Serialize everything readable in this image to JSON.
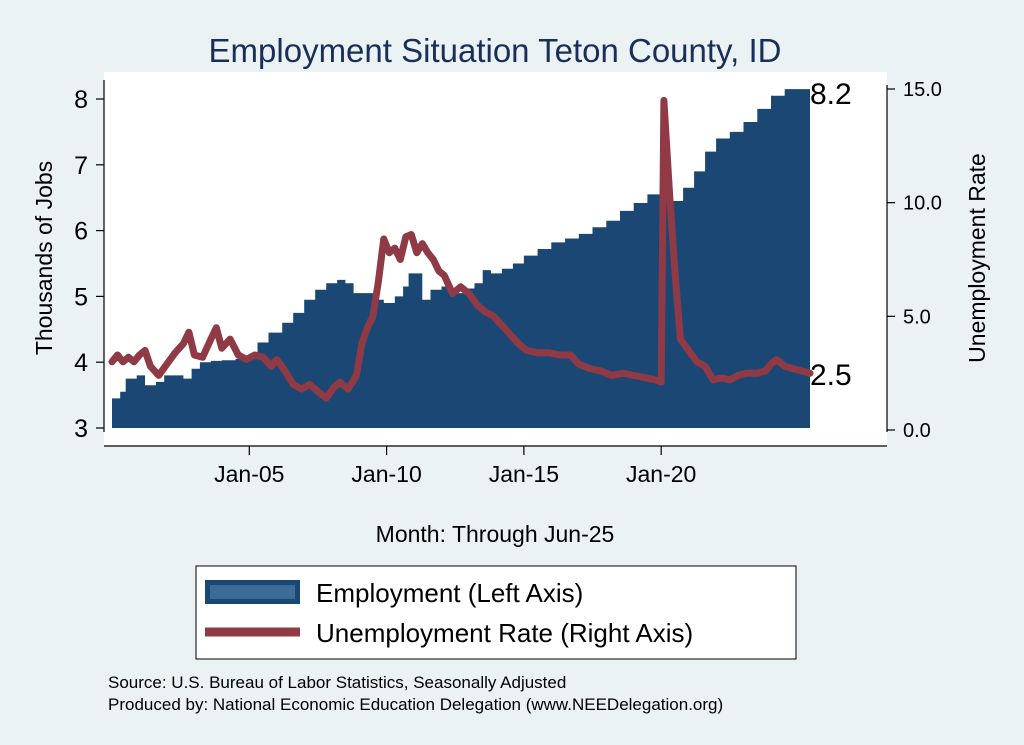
{
  "chart_data": {
    "type": "area",
    "title": "Employment Situation Teton  County, ID",
    "xlabel": "Month: Through Jun-25",
    "ylabel_left": "Thousands of Jobs",
    "ylabel_right": "Unemployment Rate",
    "x_start": "Jan-00",
    "x_end": "Jun-25",
    "x_ticks": [
      {
        "label": "Jan-05",
        "year": 2005
      },
      {
        "label": "Jan-10",
        "year": 2010
      },
      {
        "label": "Jan-15",
        "year": 2015
      },
      {
        "label": "Jan-20",
        "year": 2020
      }
    ],
    "y_left": {
      "min": 3,
      "max": 8.4,
      "ticks": [
        "3",
        "4",
        "5",
        "6",
        "7",
        "8"
      ]
    },
    "y_right": {
      "min": 0,
      "max": 15.8,
      "ticks": [
        "0.0",
        "5.0",
        "10.0",
        "15.0"
      ]
    },
    "grid": false,
    "legend_position": "bottom",
    "colors": {
      "employment": "#1a4774",
      "unemployment": "#8f3a44",
      "background": "#eaf2f3",
      "plot": "#ffffff"
    },
    "series": [
      {
        "name": "Employment (Left Axis)",
        "axis": "left",
        "points": [
          [
            2000.0,
            3.45
          ],
          [
            2000.3,
            3.55
          ],
          [
            2000.5,
            3.75
          ],
          [
            2000.9,
            3.8
          ],
          [
            2001.2,
            3.65
          ],
          [
            2001.6,
            3.7
          ],
          [
            2001.9,
            3.8
          ],
          [
            2002.3,
            3.8
          ],
          [
            2002.6,
            3.75
          ],
          [
            2002.9,
            3.9
          ],
          [
            2003.2,
            4.0
          ],
          [
            2003.6,
            4.02
          ],
          [
            2004.0,
            4.03
          ],
          [
            2004.5,
            4.05
          ],
          [
            2005.0,
            4.1
          ],
          [
            2005.3,
            4.3
          ],
          [
            2005.7,
            4.45
          ],
          [
            2006.2,
            4.6
          ],
          [
            2006.6,
            4.75
          ],
          [
            2007.0,
            4.95
          ],
          [
            2007.4,
            5.1
          ],
          [
            2007.8,
            5.2
          ],
          [
            2008.2,
            5.25
          ],
          [
            2008.5,
            5.2
          ],
          [
            2008.8,
            5.05
          ],
          [
            2009.2,
            5.05
          ],
          [
            2009.5,
            4.95
          ],
          [
            2009.9,
            4.9
          ],
          [
            2010.3,
            5.0
          ],
          [
            2010.6,
            5.15
          ],
          [
            2010.8,
            5.35
          ],
          [
            2011.1,
            5.35
          ],
          [
            2011.3,
            4.95
          ],
          [
            2011.6,
            5.1
          ],
          [
            2012.0,
            5.15
          ],
          [
            2012.4,
            5.05
          ],
          [
            2012.8,
            5.12
          ],
          [
            2013.2,
            5.2
          ],
          [
            2013.5,
            5.4
          ],
          [
            2013.8,
            5.35
          ],
          [
            2014.2,
            5.42
          ],
          [
            2014.6,
            5.5
          ],
          [
            2015.0,
            5.62
          ],
          [
            2015.5,
            5.72
          ],
          [
            2016.0,
            5.82
          ],
          [
            2016.5,
            5.88
          ],
          [
            2017.0,
            5.95
          ],
          [
            2017.5,
            6.05
          ],
          [
            2018.0,
            6.15
          ],
          [
            2018.5,
            6.3
          ],
          [
            2019.0,
            6.42
          ],
          [
            2019.5,
            6.55
          ],
          [
            2020.0,
            6.65
          ],
          [
            2020.2,
            6.75
          ],
          [
            2020.4,
            6.45
          ],
          [
            2020.8,
            6.65
          ],
          [
            2021.2,
            6.9
          ],
          [
            2021.6,
            7.2
          ],
          [
            2022.0,
            7.4
          ],
          [
            2022.5,
            7.5
          ],
          [
            2023.0,
            7.65
          ],
          [
            2023.5,
            7.85
          ],
          [
            2024.0,
            8.05
          ],
          [
            2024.5,
            8.15
          ],
          [
            2025.0,
            8.15
          ],
          [
            2025.42,
            8.2
          ]
        ]
      },
      {
        "name": "Unemployment Rate (Right Axis)",
        "axis": "right",
        "points": [
          [
            2000.0,
            3.0
          ],
          [
            2000.2,
            3.3
          ],
          [
            2000.4,
            3.0
          ],
          [
            2000.6,
            3.2
          ],
          [
            2000.8,
            3.0
          ],
          [
            2001.0,
            3.3
          ],
          [
            2001.2,
            3.5
          ],
          [
            2001.4,
            2.8
          ],
          [
            2001.7,
            2.4
          ],
          [
            2002.0,
            2.9
          ],
          [
            2002.3,
            3.4
          ],
          [
            2002.6,
            3.8
          ],
          [
            2002.8,
            4.3
          ],
          [
            2003.0,
            3.3
          ],
          [
            2003.3,
            3.2
          ],
          [
            2003.6,
            4.0
          ],
          [
            2003.8,
            4.5
          ],
          [
            2004.0,
            3.6
          ],
          [
            2004.3,
            4.0
          ],
          [
            2004.6,
            3.3
          ],
          [
            2004.9,
            3.1
          ],
          [
            2005.2,
            3.3
          ],
          [
            2005.5,
            3.2
          ],
          [
            2005.8,
            2.8
          ],
          [
            2006.0,
            3.1
          ],
          [
            2006.3,
            2.6
          ],
          [
            2006.6,
            2.0
          ],
          [
            2006.9,
            1.8
          ],
          [
            2007.2,
            2.0
          ],
          [
            2007.5,
            1.7
          ],
          [
            2007.8,
            1.4
          ],
          [
            2008.1,
            1.9
          ],
          [
            2008.3,
            2.1
          ],
          [
            2008.6,
            1.8
          ],
          [
            2008.9,
            2.4
          ],
          [
            2009.1,
            3.8
          ],
          [
            2009.3,
            4.5
          ],
          [
            2009.5,
            5.0
          ],
          [
            2009.7,
            6.5
          ],
          [
            2009.9,
            8.4
          ],
          [
            2010.1,
            7.8
          ],
          [
            2010.3,
            8.0
          ],
          [
            2010.5,
            7.5
          ],
          [
            2010.7,
            8.5
          ],
          [
            2010.9,
            8.6
          ],
          [
            2011.1,
            7.8
          ],
          [
            2011.3,
            8.2
          ],
          [
            2011.5,
            7.8
          ],
          [
            2011.7,
            7.5
          ],
          [
            2011.9,
            7.0
          ],
          [
            2012.1,
            6.8
          ],
          [
            2012.4,
            6.0
          ],
          [
            2012.7,
            6.3
          ],
          [
            2013.0,
            6.0
          ],
          [
            2013.3,
            5.5
          ],
          [
            2013.6,
            5.2
          ],
          [
            2013.9,
            5.0
          ],
          [
            2014.2,
            4.6
          ],
          [
            2014.5,
            4.2
          ],
          [
            2014.8,
            3.8
          ],
          [
            2015.1,
            3.5
          ],
          [
            2015.5,
            3.4
          ],
          [
            2015.9,
            3.4
          ],
          [
            2016.3,
            3.3
          ],
          [
            2016.7,
            3.3
          ],
          [
            2017.0,
            2.9
          ],
          [
            2017.4,
            2.7
          ],
          [
            2017.8,
            2.6
          ],
          [
            2018.2,
            2.4
          ],
          [
            2018.6,
            2.5
          ],
          [
            2019.0,
            2.4
          ],
          [
            2019.4,
            2.3
          ],
          [
            2019.8,
            2.2
          ],
          [
            2020.0,
            2.1
          ],
          [
            2020.1,
            14.5
          ],
          [
            2020.3,
            10.5
          ],
          [
            2020.5,
            7.0
          ],
          [
            2020.7,
            4.0
          ],
          [
            2021.0,
            3.5
          ],
          [
            2021.3,
            3.0
          ],
          [
            2021.6,
            2.8
          ],
          [
            2021.9,
            2.2
          ],
          [
            2022.2,
            2.3
          ],
          [
            2022.5,
            2.2
          ],
          [
            2022.8,
            2.4
          ],
          [
            2023.1,
            2.5
          ],
          [
            2023.5,
            2.5
          ],
          [
            2023.8,
            2.6
          ],
          [
            2024.0,
            2.9
          ],
          [
            2024.2,
            3.1
          ],
          [
            2024.5,
            2.8
          ],
          [
            2024.8,
            2.7
          ],
          [
            2025.1,
            2.6
          ],
          [
            2025.42,
            2.5
          ]
        ]
      }
    ],
    "annotations": {
      "employment_last": "8.2",
      "unemployment_last": "2.5"
    }
  },
  "source_line": "Source: U.S. Bureau of Labor Statistics, Seasonally Adjusted",
  "produced_line": "Produced by: National Economic Education Delegation (www.NEEDelegation.org)"
}
